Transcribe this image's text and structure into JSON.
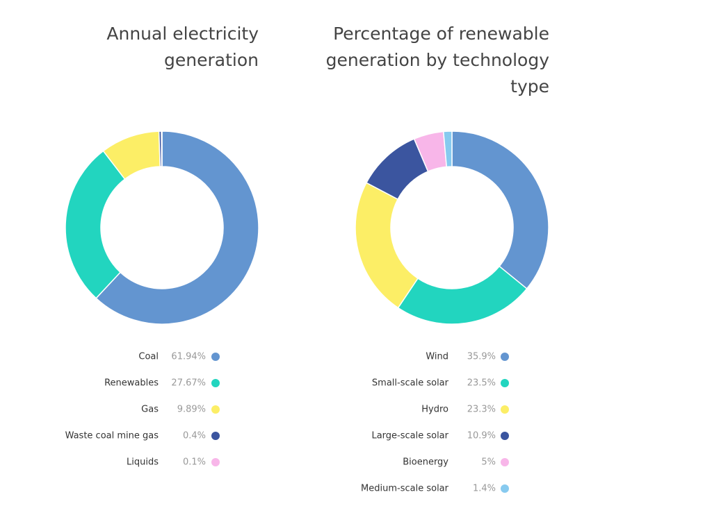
{
  "chart_data": [
    {
      "type": "pie",
      "title": "Annual electricity generation",
      "categories": [
        "Coal",
        "Renewables",
        "Gas",
        "Waste coal mine gas",
        "Liquids"
      ],
      "values": [
        61.94,
        27.67,
        9.89,
        0.4,
        0.1
      ],
      "value_labels": [
        "61.94%",
        "27.67%",
        "9.89%",
        "0.4%",
        "0.1%"
      ],
      "colors": [
        "#6395d0",
        "#22d5bf",
        "#fcee66",
        "#3b559f",
        "#f8b6e9"
      ]
    },
    {
      "type": "pie",
      "title": "Percentage of renewable generation by technology type",
      "categories": [
        "Wind",
        "Small-scale solar",
        "Hydro",
        "Large-scale solar",
        "Bioenergy",
        "Medium-scale solar"
      ],
      "values": [
        35.9,
        23.5,
        23.3,
        10.9,
        5,
        1.4
      ],
      "value_labels": [
        "35.9%",
        "23.5%",
        "23.3%",
        "10.9%",
        "5%",
        "1.4%"
      ],
      "colors": [
        "#6395d0",
        "#22d5bf",
        "#fcee66",
        "#3b559f",
        "#f8b6e9",
        "#87caef"
      ]
    }
  ]
}
